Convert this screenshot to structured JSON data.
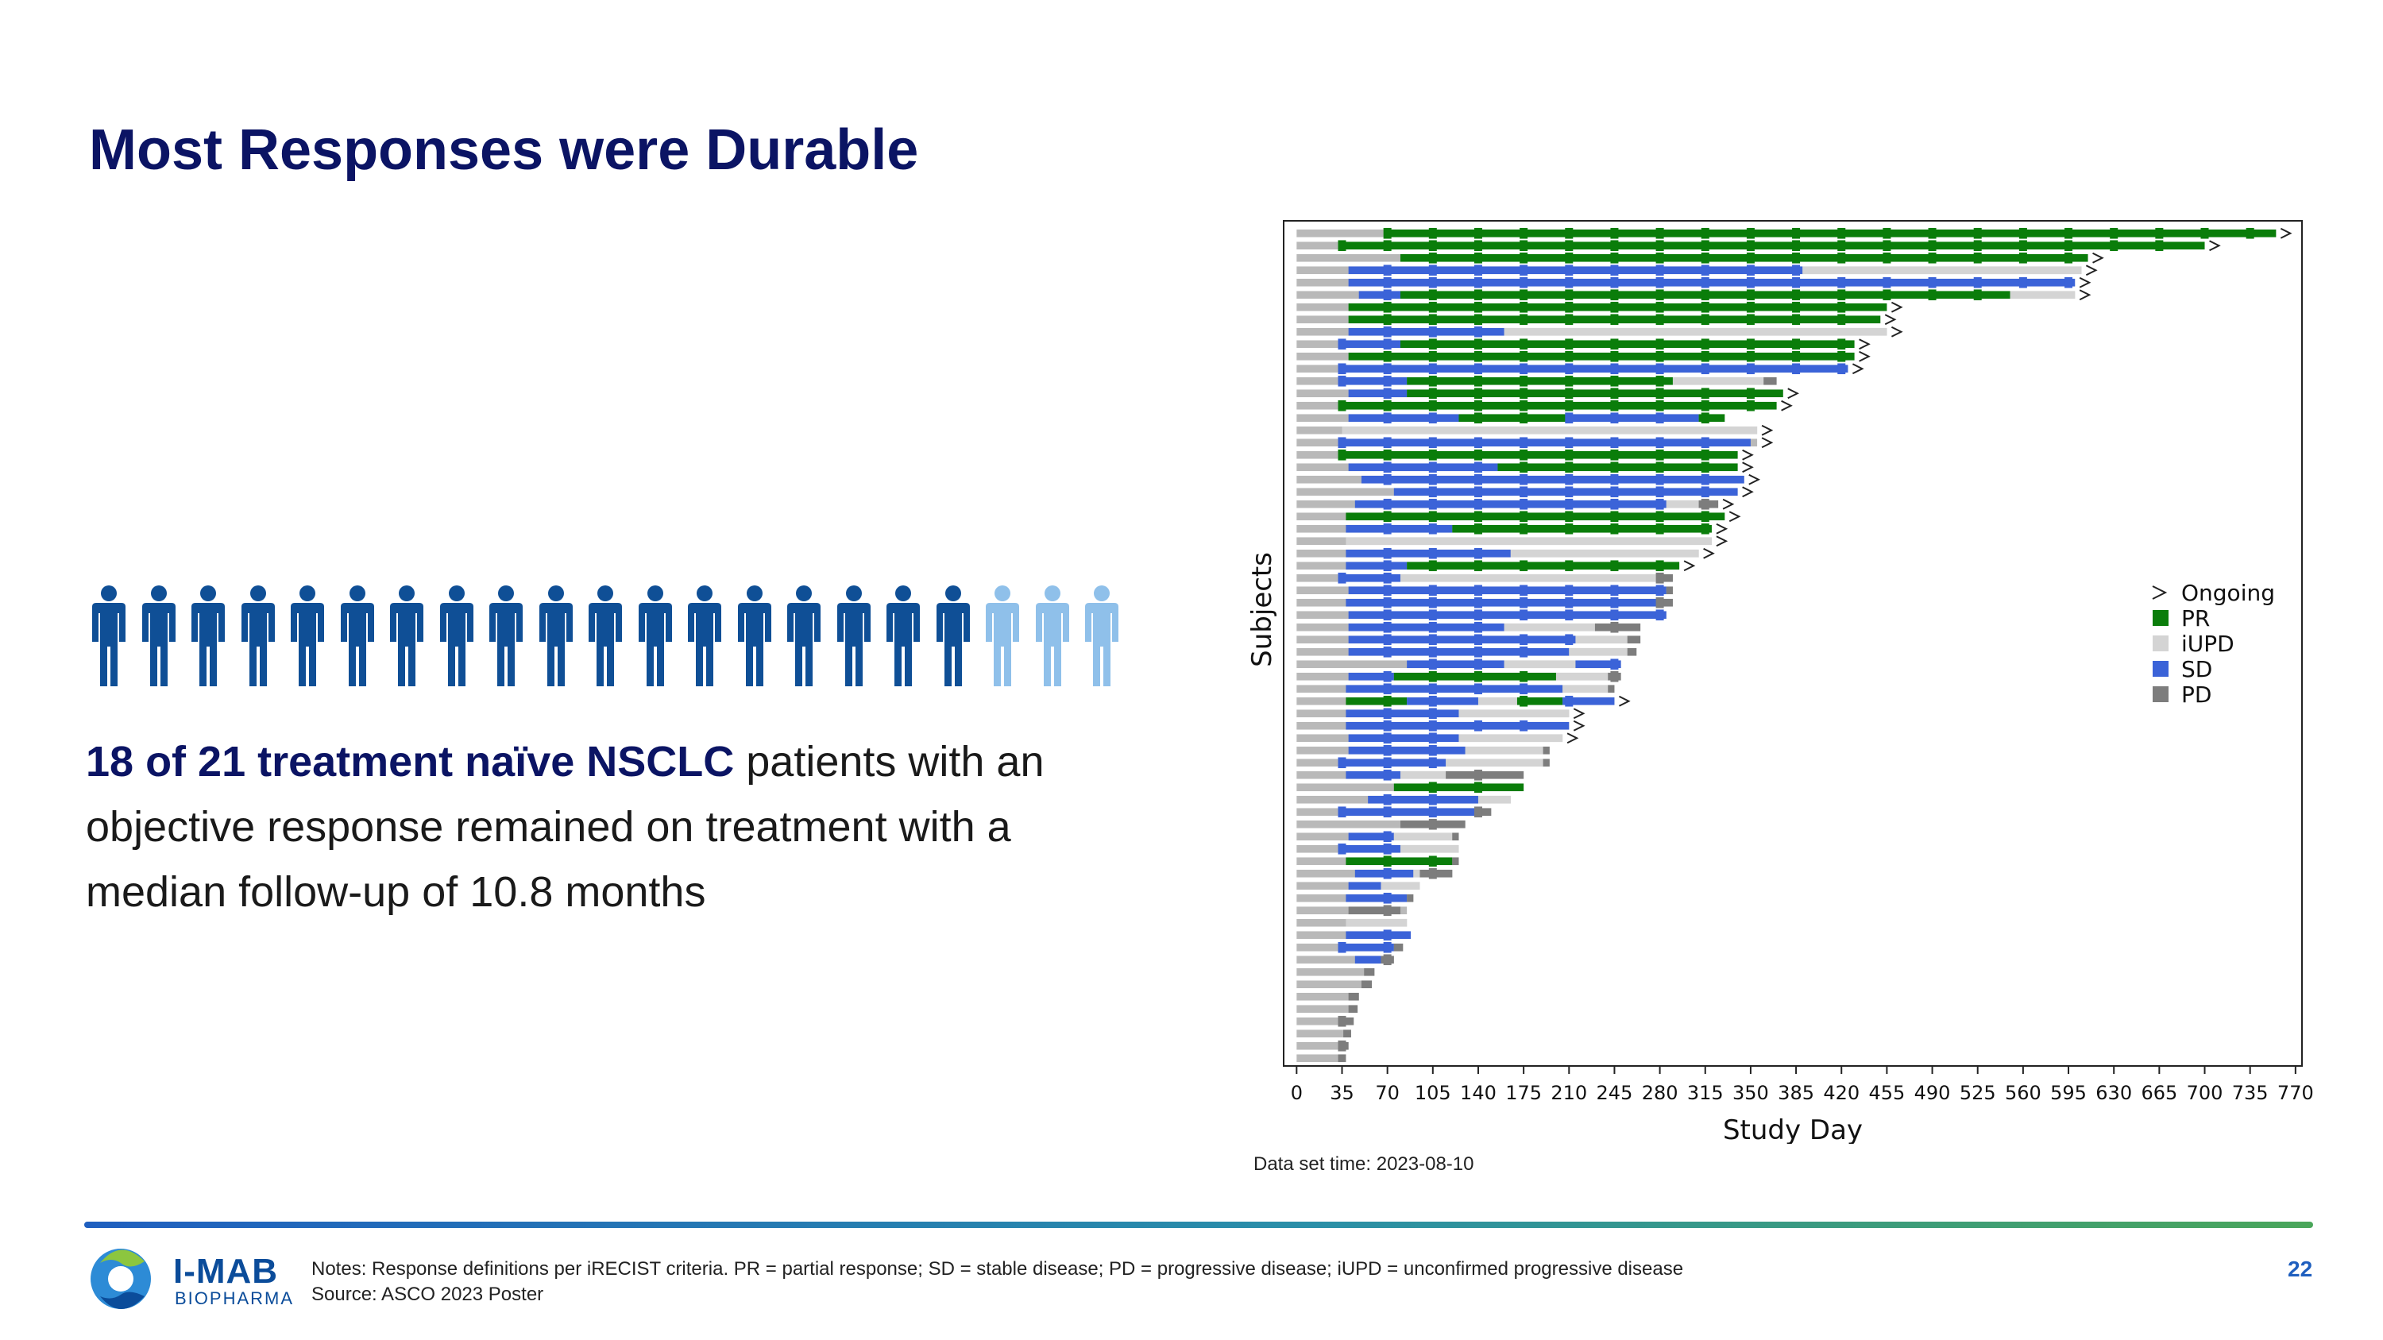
{
  "slide": {
    "title": "Most Responses were Durable",
    "body_highlight": "18 of 21 treatment naïve NSCLC",
    "body_rest": " patients with an objective response remained on treatment with a median follow-up of 10.8 months",
    "dataset_time": "Data set time: 2023-08-10",
    "notes_line1": "Notes: Response definitions per iRECIST criteria. PR = partial response; SD = stable disease; PD = progressive disease; iUPD = unconfirmed progressive disease",
    "notes_line2": "Source: ASCO 2023 Poster",
    "page_number": "22",
    "logo_name": "I-MAB",
    "logo_sub": "BIOPHARMA"
  },
  "people": {
    "total": 21,
    "responders": 18,
    "dark_color": "#0f4f96",
    "light_color": "#8fc0ea"
  },
  "colors": {
    "PR": "#0a7d0a",
    "iUPD": "#d4d4d4",
    "SD": "#3b63d8",
    "PD": "#7d7d7d",
    "base": "#b9b9b9"
  },
  "chart_data": {
    "type": "swimmer",
    "title": "",
    "xlabel": "Study Day",
    "ylabel": "Subjects",
    "xlim": [
      -10,
      775
    ],
    "xticks": [
      0,
      35,
      70,
      105,
      140,
      175,
      210,
      245,
      280,
      315,
      350,
      385,
      420,
      455,
      490,
      525,
      560,
      595,
      630,
      665,
      700,
      735,
      770
    ],
    "legend": [
      {
        "key": "Ongoing",
        "label": "Ongoing"
      },
      {
        "key": "PR",
        "label": "PR"
      },
      {
        "key": "iUPD",
        "label": "iUPD"
      },
      {
        "key": "SD",
        "label": "SD"
      },
      {
        "key": "PD",
        "label": "PD"
      }
    ],
    "legend_position": "right",
    "subjects": [
      {
        "end": 755,
        "ongoing": true,
        "segs": [
          [
            70,
            755,
            "PR"
          ]
        ]
      },
      {
        "end": 700,
        "ongoing": true,
        "segs": [
          [
            35,
            700,
            "PR"
          ]
        ]
      },
      {
        "end": 610,
        "ongoing": true,
        "segs": [
          [
            80,
            610,
            "PR"
          ]
        ]
      },
      {
        "end": 605,
        "ongoing": true,
        "segs": [
          [
            40,
            390,
            "SD"
          ],
          [
            390,
            605,
            "iUPD"
          ]
        ]
      },
      {
        "end": 600,
        "ongoing": true,
        "segs": [
          [
            40,
            600,
            "SD"
          ]
        ]
      },
      {
        "end": 600,
        "ongoing": true,
        "segs": [
          [
            48,
            80,
            "SD"
          ],
          [
            80,
            550,
            "PR"
          ],
          [
            550,
            600,
            "iUPD"
          ]
        ]
      },
      {
        "end": 455,
        "ongoing": true,
        "segs": [
          [
            40,
            455,
            "PR"
          ]
        ]
      },
      {
        "end": 450,
        "ongoing": true,
        "segs": [
          [
            40,
            450,
            "PR"
          ]
        ]
      },
      {
        "end": 455,
        "ongoing": true,
        "segs": [
          [
            40,
            160,
            "SD"
          ],
          [
            160,
            455,
            "iUPD"
          ]
        ]
      },
      {
        "end": 430,
        "ongoing": true,
        "segs": [
          [
            35,
            80,
            "SD"
          ],
          [
            80,
            430,
            "PR"
          ]
        ]
      },
      {
        "end": 430,
        "ongoing": true,
        "segs": [
          [
            40,
            430,
            "PR"
          ]
        ]
      },
      {
        "end": 425,
        "ongoing": true,
        "segs": [
          [
            35,
            425,
            "SD"
          ]
        ]
      },
      {
        "end": 370,
        "ongoing": false,
        "segs": [
          [
            35,
            85,
            "SD"
          ],
          [
            85,
            290,
            "PR"
          ],
          [
            290,
            360,
            "iUPD"
          ],
          [
            360,
            370,
            "PD"
          ]
        ]
      },
      {
        "end": 375,
        "ongoing": true,
        "segs": [
          [
            40,
            85,
            "SD"
          ],
          [
            85,
            375,
            "PR"
          ]
        ]
      },
      {
        "end": 370,
        "ongoing": true,
        "segs": [
          [
            35,
            370,
            "PR"
          ]
        ]
      },
      {
        "end": 330,
        "ongoing": false,
        "segs": [
          [
            40,
            125,
            "SD"
          ],
          [
            125,
            210,
            "PR"
          ],
          [
            210,
            310,
            "SD"
          ],
          [
            310,
            330,
            "PR"
          ]
        ]
      },
      {
        "end": 355,
        "ongoing": true,
        "segs": [
          [
            35,
            355,
            "iUPD"
          ]
        ]
      },
      {
        "end": 355,
        "ongoing": true,
        "segs": [
          [
            35,
            350,
            "SD"
          ]
        ]
      },
      {
        "end": 340,
        "ongoing": true,
        "segs": [
          [
            35,
            340,
            "PR"
          ]
        ]
      },
      {
        "end": 340,
        "ongoing": true,
        "segs": [
          [
            40,
            155,
            "SD"
          ],
          [
            155,
            340,
            "PR"
          ]
        ]
      },
      {
        "end": 345,
        "ongoing": true,
        "segs": [
          [
            50,
            345,
            "SD"
          ]
        ]
      },
      {
        "end": 340,
        "ongoing": true,
        "segs": [
          [
            75,
            340,
            "SD"
          ]
        ]
      },
      {
        "end": 325,
        "ongoing": true,
        "segs": [
          [
            45,
            285,
            "SD"
          ],
          [
            285,
            310,
            "iUPD"
          ],
          [
            310,
            325,
            "PD"
          ]
        ]
      },
      {
        "end": 330,
        "ongoing": true,
        "segs": [
          [
            38,
            330,
            "PR"
          ]
        ]
      },
      {
        "end": 320,
        "ongoing": true,
        "segs": [
          [
            38,
            120,
            "SD"
          ],
          [
            120,
            320,
            "PR"
          ]
        ]
      },
      {
        "end": 320,
        "ongoing": true,
        "segs": [
          [
            38,
            320,
            "iUPD"
          ]
        ]
      },
      {
        "end": 310,
        "ongoing": true,
        "segs": [
          [
            38,
            165,
            "SD"
          ],
          [
            165,
            310,
            "iUPD"
          ]
        ]
      },
      {
        "end": 295,
        "ongoing": true,
        "segs": [
          [
            38,
            85,
            "SD"
          ],
          [
            85,
            295,
            "PR"
          ]
        ]
      },
      {
        "end": 290,
        "ongoing": false,
        "segs": [
          [
            35,
            80,
            "SD"
          ],
          [
            80,
            280,
            "iUPD"
          ],
          [
            280,
            290,
            "PD"
          ]
        ]
      },
      {
        "end": 290,
        "ongoing": false,
        "segs": [
          [
            40,
            285,
            "SD"
          ],
          [
            285,
            290,
            "PD"
          ]
        ]
      },
      {
        "end": 290,
        "ongoing": false,
        "segs": [
          [
            38,
            280,
            "SD"
          ],
          [
            280,
            290,
            "PD"
          ]
        ]
      },
      {
        "end": 285,
        "ongoing": false,
        "segs": [
          [
            40,
            285,
            "SD"
          ]
        ]
      },
      {
        "end": 265,
        "ongoing": false,
        "segs": [
          [
            40,
            160,
            "SD"
          ],
          [
            160,
            230,
            "iUPD"
          ],
          [
            230,
            265,
            "PD"
          ]
        ]
      },
      {
        "end": 265,
        "ongoing": false,
        "segs": [
          [
            40,
            215,
            "SD"
          ],
          [
            215,
            255,
            "iUPD"
          ],
          [
            255,
            265,
            "PD"
          ]
        ]
      },
      {
        "end": 262,
        "ongoing": false,
        "segs": [
          [
            40,
            210,
            "SD"
          ],
          [
            210,
            255,
            "iUPD"
          ],
          [
            255,
            262,
            "PD"
          ]
        ]
      },
      {
        "end": 250,
        "ongoing": false,
        "segs": [
          [
            85,
            160,
            "SD"
          ],
          [
            160,
            215,
            "iUPD"
          ],
          [
            215,
            250,
            "SD"
          ]
        ]
      },
      {
        "end": 250,
        "ongoing": false,
        "segs": [
          [
            40,
            75,
            "SD"
          ],
          [
            75,
            200,
            "PR"
          ],
          [
            200,
            240,
            "iUPD"
          ],
          [
            240,
            250,
            "PD"
          ]
        ]
      },
      {
        "end": 245,
        "ongoing": false,
        "segs": [
          [
            38,
            205,
            "SD"
          ],
          [
            205,
            240,
            "iUPD"
          ],
          [
            240,
            245,
            "PD"
          ]
        ]
      },
      {
        "end": 245,
        "ongoing": true,
        "segs": [
          [
            38,
            85,
            "PR"
          ],
          [
            85,
            140,
            "SD"
          ],
          [
            140,
            170,
            "iUPD"
          ],
          [
            170,
            205,
            "PR"
          ],
          [
            205,
            245,
            "SD"
          ]
        ]
      },
      {
        "end": 210,
        "ongoing": true,
        "segs": [
          [
            38,
            125,
            "SD"
          ],
          [
            125,
            210,
            "iUPD"
          ]
        ]
      },
      {
        "end": 210,
        "ongoing": true,
        "segs": [
          [
            38,
            210,
            "SD"
          ]
        ]
      },
      {
        "end": 205,
        "ongoing": true,
        "segs": [
          [
            40,
            125,
            "SD"
          ],
          [
            125,
            205,
            "iUPD"
          ]
        ]
      },
      {
        "end": 195,
        "ongoing": false,
        "segs": [
          [
            40,
            130,
            "SD"
          ],
          [
            130,
            190,
            "iUPD"
          ],
          [
            190,
            195,
            "PD"
          ]
        ]
      },
      {
        "end": 195,
        "ongoing": false,
        "segs": [
          [
            35,
            115,
            "SD"
          ],
          [
            115,
            190,
            "iUPD"
          ],
          [
            190,
            195,
            "PD"
          ]
        ]
      },
      {
        "end": 175,
        "ongoing": false,
        "segs": [
          [
            38,
            80,
            "SD"
          ],
          [
            80,
            115,
            "iUPD"
          ],
          [
            115,
            175,
            "PD"
          ]
        ]
      },
      {
        "end": 175,
        "ongoing": false,
        "segs": [
          [
            75,
            175,
            "PR"
          ]
        ]
      },
      {
        "end": 165,
        "ongoing": false,
        "segs": [
          [
            55,
            140,
            "SD"
          ],
          [
            140,
            165,
            "iUPD"
          ]
        ]
      },
      {
        "end": 150,
        "ongoing": false,
        "segs": [
          [
            35,
            140,
            "SD"
          ],
          [
            140,
            150,
            "PD"
          ]
        ]
      },
      {
        "end": 130,
        "ongoing": false,
        "segs": [
          [
            80,
            130,
            "PD"
          ]
        ]
      },
      {
        "end": 125,
        "ongoing": false,
        "segs": [
          [
            40,
            75,
            "SD"
          ],
          [
            75,
            120,
            "iUPD"
          ],
          [
            120,
            125,
            "PD"
          ]
        ]
      },
      {
        "end": 125,
        "ongoing": false,
        "segs": [
          [
            35,
            80,
            "SD"
          ],
          [
            80,
            125,
            "iUPD"
          ]
        ]
      },
      {
        "end": 125,
        "ongoing": false,
        "segs": [
          [
            38,
            120,
            "PR"
          ],
          [
            120,
            125,
            "PD"
          ]
        ]
      },
      {
        "end": 120,
        "ongoing": false,
        "segs": [
          [
            45,
            90,
            "SD"
          ],
          [
            90,
            95,
            "iUPD"
          ],
          [
            95,
            120,
            "PD"
          ]
        ]
      },
      {
        "end": 95,
        "ongoing": false,
        "segs": [
          [
            40,
            65,
            "SD"
          ],
          [
            65,
            95,
            "iUPD"
          ]
        ]
      },
      {
        "end": 90,
        "ongoing": false,
        "segs": [
          [
            38,
            85,
            "SD"
          ],
          [
            85,
            90,
            "PD"
          ]
        ]
      },
      {
        "end": 85,
        "ongoing": false,
        "segs": [
          [
            40,
            80,
            "PD"
          ]
        ]
      },
      {
        "end": 85,
        "ongoing": false,
        "segs": [
          [
            38,
            85,
            "iUPD"
          ]
        ]
      },
      {
        "end": 88,
        "ongoing": false,
        "segs": [
          [
            38,
            88,
            "SD"
          ]
        ]
      },
      {
        "end": 82,
        "ongoing": false,
        "segs": [
          [
            32,
            75,
            "SD"
          ],
          [
            75,
            82,
            "PD"
          ]
        ]
      },
      {
        "end": 75,
        "ongoing": false,
        "segs": [
          [
            45,
            65,
            "SD"
          ],
          [
            65,
            75,
            "PD"
          ]
        ]
      },
      {
        "end": 60,
        "ongoing": false,
        "segs": [
          [
            52,
            60,
            "PD"
          ]
        ]
      },
      {
        "end": 58,
        "ongoing": false,
        "segs": [
          [
            50,
            58,
            "PD"
          ]
        ]
      },
      {
        "end": 48,
        "ongoing": false,
        "segs": [
          [
            40,
            48,
            "PD"
          ]
        ]
      },
      {
        "end": 47,
        "ongoing": false,
        "segs": [
          [
            40,
            47,
            "PD"
          ]
        ]
      },
      {
        "end": 44,
        "ongoing": false,
        "segs": [
          [
            32,
            44,
            "PD"
          ]
        ]
      },
      {
        "end": 42,
        "ongoing": false,
        "segs": [
          [
            36,
            42,
            "PD"
          ]
        ]
      },
      {
        "end": 40,
        "ongoing": false,
        "segs": [
          [
            33,
            40,
            "PD"
          ]
        ]
      },
      {
        "end": 38,
        "ongoing": false,
        "segs": [
          [
            32,
            38,
            "PD"
          ]
        ]
      }
    ]
  }
}
